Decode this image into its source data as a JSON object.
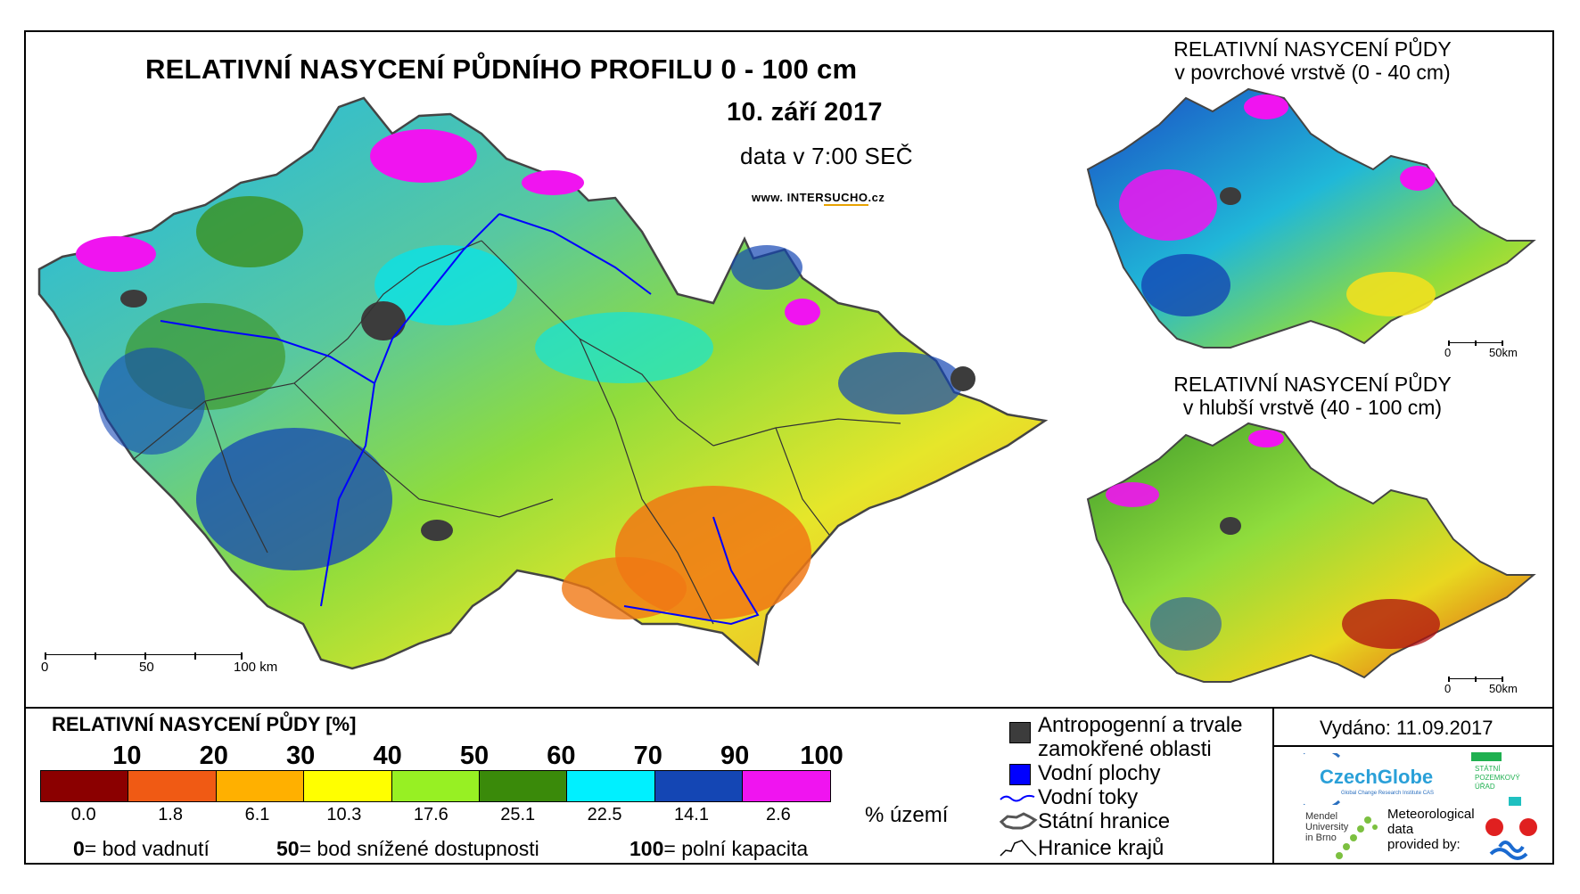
{
  "main": {
    "title": "RELATIVNÍ NASYCENÍ PŮDNÍHO PROFILU 0 - 100 cm",
    "date": "10. září 2017",
    "time": "data v 7:00 SEČ",
    "url_prefix": "www.",
    "url_plain": "INTER",
    "url_highlight": "SUCHO",
    "url_suffix": ".cz",
    "scale": [
      "0",
      "50",
      "100 km"
    ]
  },
  "inset_top": {
    "title_line1": "RELATIVNÍ NASYCENÍ PŮDY",
    "title_line2": "v povrchové vrstvě (0 - 40 cm)",
    "scale": [
      "0",
      "50km"
    ]
  },
  "inset_bottom": {
    "title_line1": "RELATIVNÍ NASYCENÍ PŮDY",
    "title_line2": "v hlubší vrstvě (40 - 100 cm)",
    "scale": [
      "0",
      "50km"
    ]
  },
  "legend": {
    "title": "RELATIVNÍ NASYCENÍ PŮDY [%]",
    "breaks": [
      "10",
      "20",
      "30",
      "40",
      "50",
      "60",
      "70",
      "90",
      "100"
    ],
    "colors": [
      "#8b0000",
      "#f05a14",
      "#ffb000",
      "#ffff00",
      "#97f023",
      "#3a8a0a",
      "#00f0ff",
      "#1446b4",
      "#f014f0"
    ],
    "area_percent": [
      "0.0",
      "1.8",
      "6.1",
      "10.3",
      "17.6",
      "25.1",
      "22.5",
      "14.1",
      "2.6"
    ],
    "area_unit": "% území",
    "note_0_num": "0",
    "note_0_text": "= bod vadnutí",
    "note_50_num": "50",
    "note_50_text": "= bod snížené dostupnosti",
    "note_100_num": "100",
    "note_100_text": "= polní kapacita"
  },
  "key": {
    "anthropogenic_line1": "Antropogenní a trvale",
    "anthropogenic_line2": "zamokřené oblasti",
    "water_bodies": "Vodní plochy",
    "water_streams": "Vodní toky",
    "state_border": "Státní hranice",
    "region_border": "Hranice krajů",
    "anthropogenic_color": "#3c3c3c",
    "water_body_color": "#0000ff",
    "stream_color": "#0000ff"
  },
  "issued": "Vydáno: 11.09.2017",
  "logos": {
    "czechglobe": "CzechGlobe",
    "czechglobe_sub": "Global Change Research Institute CAS",
    "spu_line1": "STÁTNÍ",
    "spu_line2": "POZEMKOVÝ",
    "spu_line3": "ÚŘAD",
    "mendel_line1": "Mendel",
    "mendel_line2": "University",
    "mendel_line3": "in Brno",
    "meteo_line1": "Meteorological",
    "meteo_line2": "data",
    "meteo_line3": "provided by:"
  }
}
